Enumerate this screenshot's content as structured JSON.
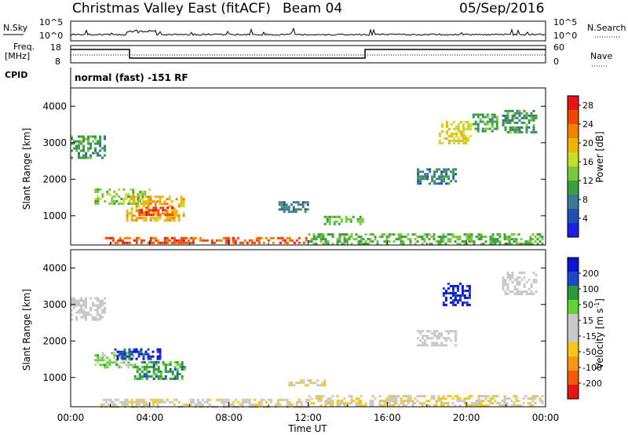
{
  "header": {
    "station": "Christmas Valley East (fitACF)",
    "beam": "Beam 04",
    "date": "05/Sep/2016"
  },
  "strip_panels": {
    "nsky": {
      "label": "N.Sky",
      "ticks": [
        "10^5",
        "10^0"
      ],
      "right_label": "N.Search",
      "right_ticks": [
        "10^5",
        "10^0"
      ]
    },
    "freq": {
      "label_line1": "Freq.",
      "label_line2": "[MHz]",
      "ticks": [
        "18",
        "8"
      ],
      "right_label": "Nave",
      "right_ticks": [
        "60",
        "0"
      ]
    },
    "cpid": {
      "label": "CPID",
      "value": "normal (fast) -151 RF"
    }
  },
  "colors": {
    "power_scale": [
      "#1e1ee6",
      "#1e50b4",
      "#3c7896",
      "#3ca03c",
      "#78c83c",
      "#c8dc28",
      "#f0b400",
      "#f08200",
      "#f04600",
      "#e61414"
    ],
    "velocity_scale": [
      "#0a14d2",
      "#1e46c8",
      "#2a9a3a",
      "#64d232",
      "#c8c8c8",
      "#c8c8c8",
      "#f5c814",
      "#f59614",
      "#f55a0a",
      "#e61414"
    ]
  },
  "chart_data": [
    {
      "type": "heatmap",
      "name": "power",
      "ylabel": "Slant Range [km]",
      "xlabel": "",
      "yticks": [
        "1000",
        "2000",
        "3000",
        "4000"
      ],
      "ylim": [
        200,
        4500
      ],
      "xlim": [
        0,
        24
      ],
      "colorbar": {
        "label": "Power [dB]",
        "ticks": [
          "4",
          "8",
          "12",
          "16",
          "20",
          "24",
          "28"
        ],
        "range": [
          0,
          30
        ]
      },
      "regions": [
        {
          "t0": 0.0,
          "t1": 1.7,
          "r0": 2600,
          "r1": 3200,
          "value": 10
        },
        {
          "t0": 1.2,
          "t1": 4.0,
          "r0": 1300,
          "r1": 1750,
          "value": 14
        },
        {
          "t0": 2.8,
          "t1": 5.7,
          "r0": 900,
          "r1": 1550,
          "value": 20
        },
        {
          "t0": 3.3,
          "t1": 5.2,
          "r0": 1000,
          "r1": 1250,
          "value": 26
        },
        {
          "t0": 1.5,
          "t1": 12.0,
          "r0": 240,
          "r1": 420,
          "value": 25
        },
        {
          "t0": 12.0,
          "t1": 23.8,
          "r0": 240,
          "r1": 520,
          "value": 12
        },
        {
          "t0": 10.5,
          "t1": 12.0,
          "r0": 1100,
          "r1": 1400,
          "value": 8
        },
        {
          "t0": 12.8,
          "t1": 14.8,
          "r0": 780,
          "r1": 1000,
          "value": 12
        },
        {
          "t0": 18.6,
          "t1": 20.2,
          "r0": 3000,
          "r1": 3600,
          "value": 18
        },
        {
          "t0": 20.3,
          "t1": 21.5,
          "r0": 3300,
          "r1": 3800,
          "value": 10
        },
        {
          "t0": 21.8,
          "t1": 23.5,
          "r0": 3300,
          "r1": 3900,
          "value": 10
        },
        {
          "t0": 17.5,
          "t1": 19.5,
          "r0": 1900,
          "r1": 2300,
          "value": 8
        }
      ]
    },
    {
      "type": "heatmap",
      "name": "velocity",
      "ylabel": "Slant Range [km]",
      "xlabel": "Time UT",
      "xticks": [
        "00:00",
        "04:00",
        "08:00",
        "12:00",
        "16:00",
        "20:00",
        "00:00"
      ],
      "yticks": [
        "1000",
        "2000",
        "3000",
        "4000"
      ],
      "ylim": [
        200,
        4500
      ],
      "xlim": [
        0,
        24
      ],
      "colorbar": {
        "label": "Velocity [m s^-1]",
        "ticks": [
          "200",
          "100",
          "50",
          "15",
          "-15",
          "-50",
          "-100",
          "-200"
        ],
        "range": [
          -250,
          250
        ]
      },
      "regions": [
        {
          "t0": 0.0,
          "t1": 1.7,
          "r0": 2600,
          "r1": 3200,
          "value": 0
        },
        {
          "t0": 1.2,
          "t1": 3.2,
          "r0": 1300,
          "r1": 1700,
          "value": 60
        },
        {
          "t0": 3.2,
          "t1": 5.7,
          "r0": 950,
          "r1": 1450,
          "value": 120
        },
        {
          "t0": 2.2,
          "t1": 4.5,
          "r0": 1500,
          "r1": 1800,
          "value": 180
        },
        {
          "t0": 1.5,
          "t1": 12.0,
          "r0": 220,
          "r1": 420,
          "value": -30
        },
        {
          "t0": 12.0,
          "t1": 23.8,
          "r0": 220,
          "r1": 520,
          "value": -40
        },
        {
          "t0": 11.0,
          "t1": 12.8,
          "r0": 780,
          "r1": 950,
          "value": -40
        },
        {
          "t0": 18.8,
          "t1": 20.2,
          "r0": 3000,
          "r1": 3600,
          "value": 220
        },
        {
          "t0": 21.8,
          "t1": 23.5,
          "r0": 3300,
          "r1": 3900,
          "value": 0
        },
        {
          "t0": 17.5,
          "t1": 19.5,
          "r0": 1900,
          "r1": 2300,
          "value": 0
        }
      ]
    }
  ]
}
